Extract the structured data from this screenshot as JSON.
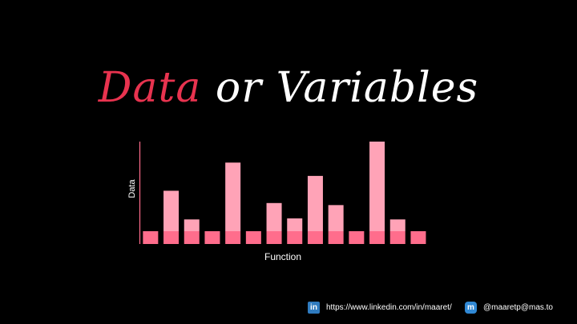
{
  "title": {
    "accent": "Data",
    "rest": " or Variables"
  },
  "chart_data": {
    "type": "bar",
    "xlabel": "Function",
    "ylabel": "Data",
    "grid": false,
    "legend": "none",
    "colors": {
      "base": "#ff6d8c",
      "top": "#ffa3b7"
    },
    "ylim": [
      0,
      1
    ],
    "base_value": 0.125,
    "values": [
      0.125,
      0.52,
      0.24,
      0.125,
      0.795,
      0.125,
      0.4,
      0.25,
      0.665,
      0.38,
      0.125,
      1.0,
      0.24,
      0.125
    ]
  },
  "footer": {
    "linkedin": {
      "icon": "linkedin-icon",
      "glyph": "in",
      "text": "https://www.linkedin.com/in/maaret/"
    },
    "mastodon": {
      "icon": "mastodon-icon",
      "glyph": "m",
      "text": "@maaretp@mas.to"
    }
  }
}
